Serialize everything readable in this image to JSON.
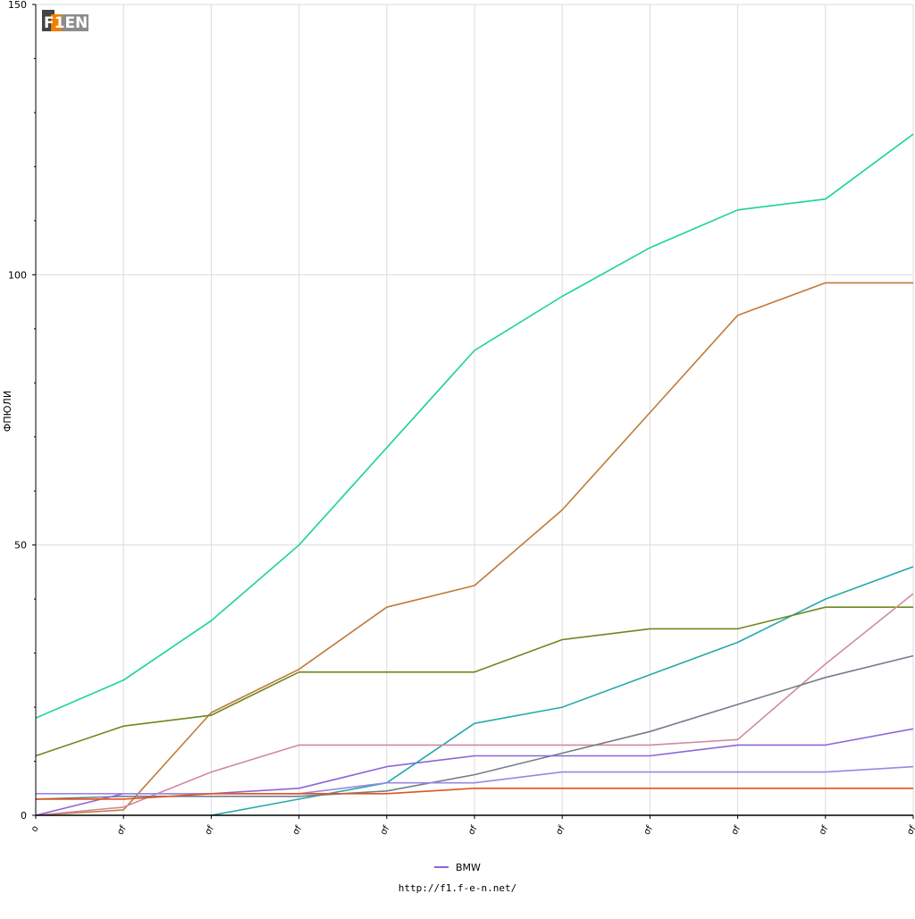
{
  "logo": {
    "text": "F1EN",
    "colors": {
      "f": "#444444",
      "one": "#f07f00",
      "en": "#888888"
    }
  },
  "footer": {
    "url": "http://f1.f-e-n.net/"
  },
  "chart_data": {
    "type": "line",
    "title": "",
    "xlabel": "",
    "ylabel": "ФПЮЛИ",
    "x_tick_labels": [
      "o",
      "σf",
      "σf",
      "σf",
      "σf",
      "σf",
      "σf",
      "σf",
      "σf",
      "σf",
      "σf"
    ],
    "y_ticks": [
      0,
      50,
      100,
      150
    ],
    "ylim": [
      0,
      150
    ],
    "grid": true,
    "legend_position": "bottom-center",
    "legend": [
      {
        "name": "BMW",
        "color": "#8b66d9"
      }
    ],
    "series": [
      {
        "color": "#19d68c",
        "values": [
          18,
          25,
          36,
          50,
          68,
          86,
          96,
          105,
          112,
          114,
          126
        ]
      },
      {
        "color": "#c07a38",
        "values": [
          0,
          1,
          19,
          27,
          38.5,
          42.5,
          56.5,
          74.5,
          92.5,
          98.5,
          98.5
        ]
      },
      {
        "color": "#27a9a9",
        "values": [
          null,
          null,
          0,
          3,
          6,
          17,
          20,
          26,
          32,
          40,
          46
        ]
      },
      {
        "color": "#6b8a1c",
        "values": [
          11,
          16.5,
          18.5,
          26.5,
          26.5,
          26.5,
          32.5,
          34.5,
          34.5,
          38.5,
          38.5
        ]
      },
      {
        "color": "#d08a9e",
        "values": [
          0,
          1.5,
          8,
          13,
          13,
          13,
          13,
          13,
          14,
          28,
          41
        ]
      },
      {
        "color": "#757d8b",
        "values": [
          3,
          3.5,
          3.5,
          3.5,
          4.5,
          7.5,
          11.5,
          15.5,
          20.5,
          25.5,
          29.5
        ]
      },
      {
        "color": "#8b66d9",
        "values": [
          0,
          4,
          4,
          5,
          9,
          11,
          11,
          11,
          13,
          13,
          16
        ]
      },
      {
        "color": "#9a86e6",
        "values": [
          4,
          4,
          4,
          4,
          6,
          6,
          8,
          8,
          8,
          8,
          9
        ]
      },
      {
        "color": "#e0551a",
        "values": [
          3,
          3,
          4,
          4,
          4,
          5,
          5,
          5,
          5,
          5,
          5
        ]
      },
      {
        "color": "#000000",
        "values": [
          0,
          0,
          0,
          0,
          0,
          0,
          0,
          0,
          0,
          0,
          0
        ]
      }
    ]
  }
}
